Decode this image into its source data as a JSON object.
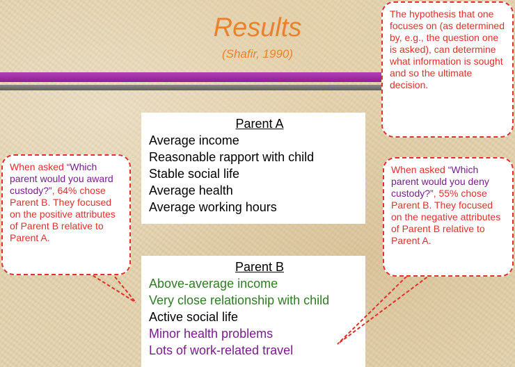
{
  "slide": {
    "title": "Results",
    "citation": "(Shafir, 1990)"
  },
  "parent_a": {
    "heading": "Parent A",
    "attributes": [
      "Average income",
      "Reasonable rapport with child",
      "Stable social life",
      "Average health",
      "Average working hours"
    ]
  },
  "parent_b": {
    "heading": "Parent B",
    "attributes": [
      "Above-average income",
      "Very close relationship with child",
      "Active social life",
      "Minor health problems",
      "Lots of work-related travel"
    ]
  },
  "callouts": {
    "hypothesis": "The hypothesis that one focuses on (as determined by, e.g., the question one is asked), can determine what information is sought and so the ultimate decision.",
    "award": {
      "prefix": "When asked ",
      "question": "“Which parent would you award custody?”",
      "rest": ", 64% chose Parent B. They focused on the positive attributes of Parent B relative to Parent A."
    },
    "deny": {
      "prefix": "When asked ",
      "question": "“Which parent would you deny custody?”",
      "rest": ", 55% chose Parent B. They focused on the negative attributes of Parent B relative to Parent A."
    }
  },
  "colors": {
    "title": "#e8822e",
    "callout_text": "#e0302a",
    "positive_attr": "#2e7d22",
    "negative_attr": "#7a1c8c",
    "bar_purple": "#9c2aa3",
    "bar_gray": "#707070"
  }
}
